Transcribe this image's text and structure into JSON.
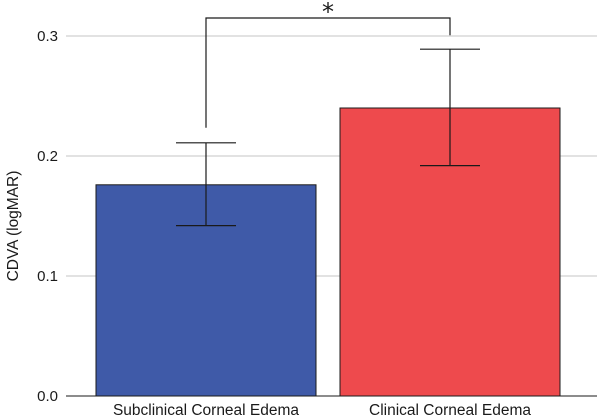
{
  "chart_data": {
    "type": "bar",
    "categories": [
      "Subclinical Corneal Edema",
      "Clinical Corneal Edema"
    ],
    "values": [
      0.176,
      0.24
    ],
    "error_low": [
      0.142,
      0.192
    ],
    "error_high": [
      0.211,
      0.289
    ],
    "colors": [
      "#3f5aa8",
      "#ee4a4d"
    ],
    "ylabel": "CDVA (logMAR)",
    "ylim": [
      0,
      0.33
    ],
    "yticks": [
      0.0,
      0.1,
      0.2,
      0.3
    ],
    "ytick_labels": [
      "0.0",
      "0.1",
      "0.2",
      "0.3"
    ],
    "grid": true,
    "significance": {
      "between": [
        0,
        1
      ],
      "label": "*"
    }
  }
}
